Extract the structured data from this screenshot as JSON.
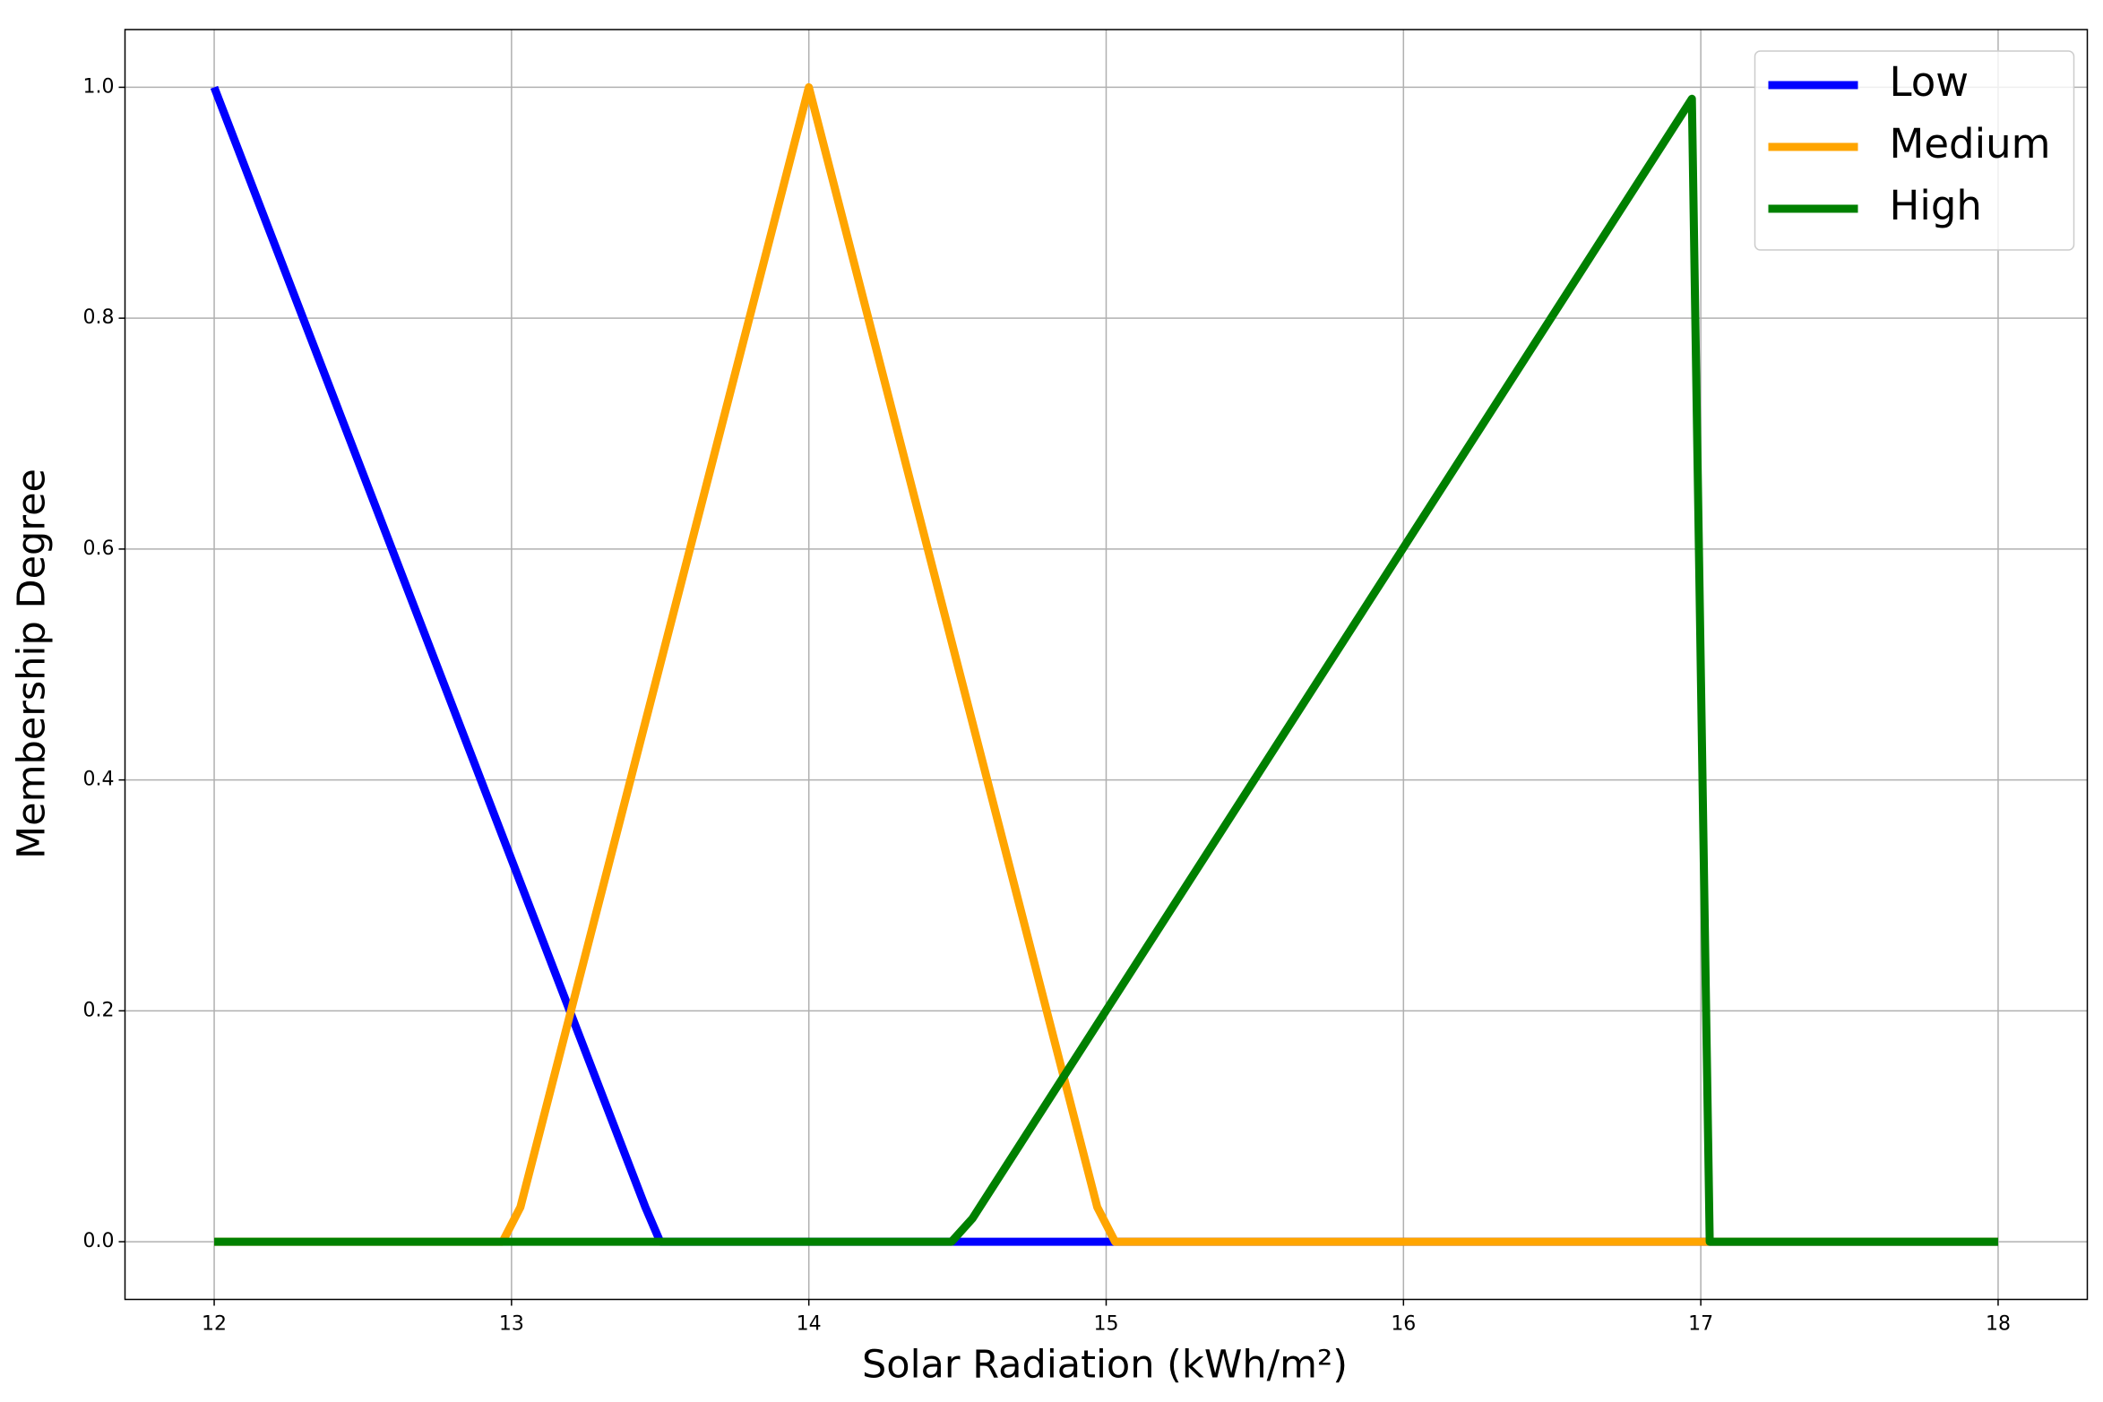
{
  "chart_data": {
    "type": "line",
    "xlabel": "Solar Radiation (kWh/m²)",
    "ylabel": "Membership Degree",
    "xlim": [
      11.7,
      18.3
    ],
    "xticks": [
      12,
      13,
      14,
      15,
      16,
      17,
      18
    ],
    "ylim": [
      -0.05,
      1.05
    ],
    "yticks": [
      {
        "value": 0,
        "label": "0.0"
      },
      {
        "value": 0.2,
        "label": "0.2"
      },
      {
        "value": 0.4,
        "label": "0.4"
      },
      {
        "value": 0.6,
        "label": "0.6"
      },
      {
        "value": 0.8,
        "label": "0.8"
      },
      {
        "value": 1,
        "label": "1.0"
      }
    ],
    "grid": true,
    "legend": "upper right",
    "series": [
      {
        "name": "Low",
        "color": "#0000ff",
        "x": [
          12,
          13.45,
          13.5,
          18
        ],
        "values": [
          1,
          0.03,
          0,
          0
        ]
      },
      {
        "name": "Medium",
        "color": "#ffa500",
        "x": [
          12,
          12.97,
          13.03,
          14,
          14.97,
          15.03,
          18
        ],
        "values": [
          0,
          0,
          0.03,
          1,
          0.03,
          0,
          0
        ]
      },
      {
        "name": "High",
        "color": "#008000",
        "x": [
          12,
          14.48,
          14.55,
          16.97,
          17.03,
          18
        ],
        "values": [
          0,
          0,
          0.02,
          0.99,
          0,
          0
        ]
      }
    ]
  }
}
